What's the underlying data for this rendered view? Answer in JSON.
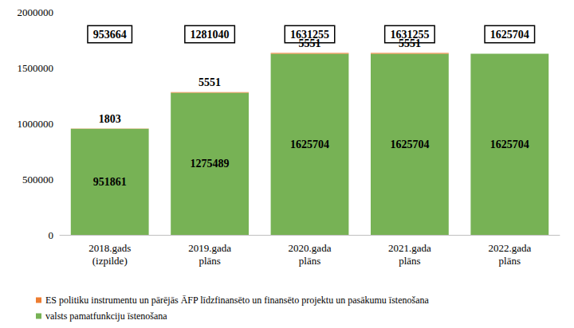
{
  "chart_data": {
    "type": "bar",
    "categories": [
      "2018.gads\n(izpilde)",
      "2019.gada\nplāns",
      "2020.gada\nplāns",
      "2021.gada\nplāns",
      "2022.gada\nplāns"
    ],
    "series": [
      {
        "name": "valsts pamatfunkciju īstenošana",
        "color": "#77b255",
        "values": [
          951861,
          1275489,
          1625704,
          1625704,
          1625704
        ]
      },
      {
        "name": "ES politiku instrumentu un pārējās ĀFP līdzfinansēto un finansēto projektu un pasākumu īstenošana",
        "color": "#ed7d31",
        "values": [
          1803,
          5551,
          5551,
          5551,
          null
        ]
      }
    ],
    "totals": [
      953664,
      1281040,
      1631255,
      1631255,
      1625704
    ],
    "stacked": true,
    "data_labels": true,
    "grid": false,
    "legend": "bottom-left",
    "ylim": [
      0,
      2000000
    ],
    "yticks": [
      0,
      500000,
      1000000,
      1500000,
      2000000
    ]
  }
}
